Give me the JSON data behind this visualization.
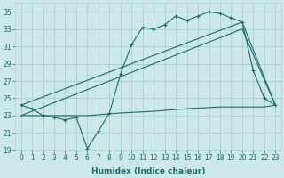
{
  "xlabel": "Humidex (Indice chaleur)",
  "bg_color": "#cce8e8",
  "grid_color": "#aacfcf",
  "line_color": "#1a6b6b",
  "xlim": [
    -0.5,
    23.5
  ],
  "ylim": [
    19,
    36
  ],
  "xticks": [
    0,
    1,
    2,
    3,
    4,
    5,
    6,
    7,
    8,
    9,
    10,
    11,
    12,
    13,
    14,
    15,
    16,
    17,
    18,
    19,
    20,
    21,
    22,
    23
  ],
  "yticks": [
    19,
    21,
    23,
    25,
    27,
    29,
    31,
    33,
    35
  ],
  "xlabel_fontsize": 6.5,
  "tick_fontsize": 5.5,
  "series1_x": [
    0,
    1,
    2,
    3,
    4,
    5,
    6,
    7,
    8,
    9,
    10,
    11,
    12,
    13,
    14,
    15,
    16,
    17,
    18,
    19,
    20,
    21,
    22,
    23
  ],
  "series1_y": [
    24.2,
    23.8,
    23.0,
    22.8,
    22.5,
    22.8,
    19.2,
    21.2,
    23.3,
    27.8,
    31.2,
    33.2,
    33.0,
    33.5,
    34.5,
    34.0,
    34.5,
    35.0,
    34.8,
    34.3,
    33.8,
    28.2,
    25.0,
    24.2
  ],
  "series2_x": [
    0,
    20,
    23
  ],
  "series2_y": [
    24.2,
    33.8,
    24.2
  ],
  "series3_x": [
    0,
    20,
    23
  ],
  "series3_y": [
    23.0,
    33.0,
    24.2
  ],
  "series4_x": [
    0,
    6,
    9,
    12,
    15,
    18,
    20,
    21,
    22,
    23
  ],
  "series4_y": [
    23.0,
    23.0,
    23.3,
    23.5,
    23.8,
    24.0,
    24.0,
    24.0,
    24.0,
    24.2
  ]
}
